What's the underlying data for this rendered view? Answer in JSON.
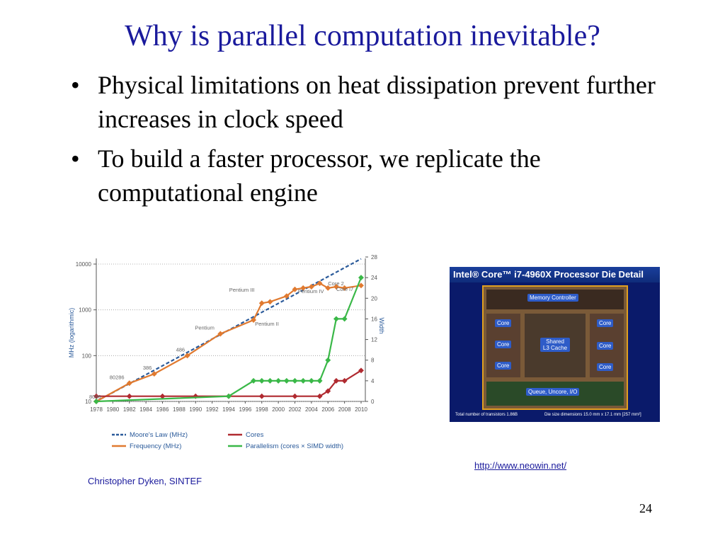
{
  "slide": {
    "title": "Why is parallel computation inevitable?",
    "bullets": [
      "Physical limitations on heat dissipation prevent further increases in clock  speed",
      "To build a faster processor, we replicate the computational engine"
    ],
    "credit": "Christopher Dyken, SINTEF",
    "link": "http://www.neowin.net/",
    "page_number": "24"
  },
  "die_image": {
    "header": "Intel® Core™ i7-4960X Processor Die Detail",
    "labels": [
      "Memory Controller",
      "Core",
      "Core",
      "Shared L3 Cache",
      "Core",
      "Core",
      "Core",
      "Core",
      "Queue, Uncore, I/O"
    ],
    "footer_left": "Total number of transistors 1.86B",
    "footer_right": "Die size dimensions 15.0 mm x 17.1 mm [257 mm²]"
  },
  "chart_data": {
    "type": "line",
    "x_ticks": [
      1978,
      1980,
      1982,
      1984,
      1986,
      1988,
      1990,
      1992,
      1994,
      1996,
      1998,
      2000,
      2002,
      2004,
      2006,
      2008,
      2010
    ],
    "xlim": [
      1978,
      2010
    ],
    "ylabel": "MHz (logarithmic)",
    "y_scale": "log",
    "ylim": [
      10,
      10000
    ],
    "y_ticks": [
      "10",
      "100",
      "1000",
      "10000"
    ],
    "y2label": "Width",
    "y2lim": [
      0,
      28
    ],
    "y2_ticks": [
      0,
      4,
      8,
      12,
      16,
      20,
      24,
      28
    ],
    "series": [
      {
        "name": "Moore's Law (MHz)",
        "axis": "left",
        "color": "#2a5a9a",
        "style": "dashed",
        "x": [
          1978,
          2010
        ],
        "y": [
          10,
          13000
        ]
      },
      {
        "name": "Frequency (MHz)",
        "axis": "left",
        "color": "#e07a30",
        "style": "solid",
        "x": [
          1978,
          1982,
          1985,
          1989,
          1993,
          1997,
          1998,
          1999,
          2001,
          2002,
          2003,
          2004,
          2005,
          2006,
          2007,
          2008,
          2010
        ],
        "y": [
          10,
          25,
          40,
          100,
          300,
          600,
          1400,
          1500,
          2000,
          2800,
          3000,
          3200,
          3800,
          3000,
          3200,
          3000,
          3400
        ]
      },
      {
        "name": "Cores",
        "axis": "right",
        "color": "#b02a30",
        "style": "solid",
        "x": [
          1978,
          1982,
          1986,
          1990,
          1994,
          1998,
          2002,
          2005,
          2006,
          2007,
          2008,
          2010
        ],
        "y": [
          1,
          1,
          1,
          1,
          1,
          1,
          1,
          1,
          2,
          4,
          4,
          6
        ]
      },
      {
        "name": "Parallelism (cores × SIMD width)",
        "axis": "right",
        "color": "#3ab848",
        "style": "solid",
        "x": [
          1978,
          1994,
          1997,
          1998,
          1999,
          2000,
          2001,
          2002,
          2003,
          2004,
          2005,
          2006,
          2007,
          2008,
          2010
        ],
        "y": [
          0,
          1,
          4,
          4,
          4,
          4,
          4,
          4,
          4,
          4,
          4,
          8,
          16,
          16,
          24
        ]
      }
    ],
    "annotations": [
      {
        "text": "8086",
        "x": 1978,
        "y": 10
      },
      {
        "text": "80286",
        "x": 1982,
        "y": 25
      },
      {
        "text": "386",
        "x": 1985,
        "y": 40
      },
      {
        "text": "486",
        "x": 1989,
        "y": 100
      },
      {
        "text": "Pentium",
        "x": 1993,
        "y": 300
      },
      {
        "text": "Pentium II",
        "x": 1997,
        "y": 600
      },
      {
        "text": "Pentium III",
        "x": 1998,
        "y": 1400
      },
      {
        "text": "Pentium IV",
        "x": 2001,
        "y": 2000
      },
      {
        "text": "Core 2",
        "x": 2006,
        "y": 3000
      },
      {
        "text": "Core i7",
        "x": 2007,
        "y": 3200
      }
    ],
    "legend_position": "bottom"
  }
}
